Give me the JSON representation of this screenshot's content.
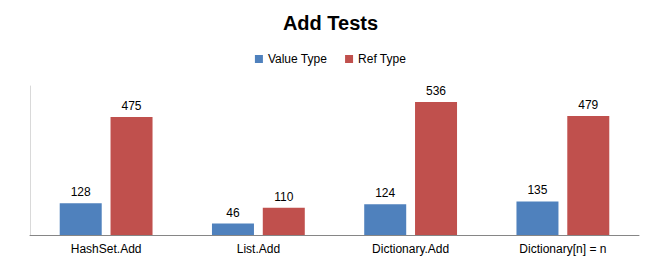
{
  "chart_data": {
    "type": "bar",
    "title": "Add Tests",
    "categories": [
      "HashSet.Add",
      "List.Add",
      "Dictionary.Add",
      "Dictionary[n] = n"
    ],
    "series": [
      {
        "name": "Value Type",
        "color": "#4f81bd",
        "values": [
          128,
          46,
          124,
          135
        ]
      },
      {
        "name": "Ref Type",
        "color": "#c0504d",
        "values": [
          475,
          110,
          536,
          479
        ]
      }
    ],
    "ylim": [
      0,
      600
    ],
    "grid": false,
    "legend": "top",
    "data_labels": true,
    "tick_labels": "x"
  }
}
